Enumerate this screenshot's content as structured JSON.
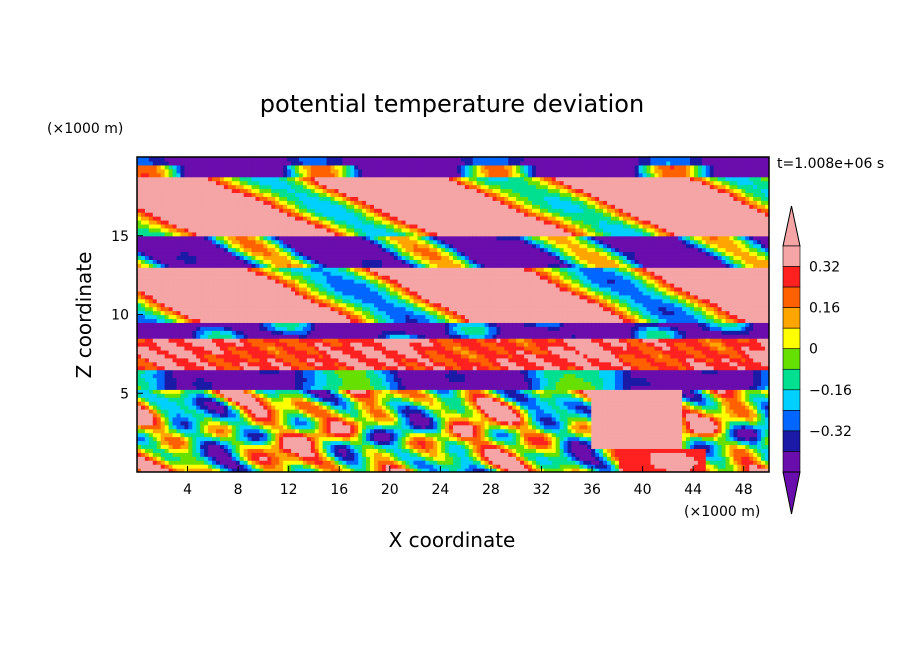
{
  "chart_data": {
    "type": "heatmap",
    "title": "potential temperature deviation",
    "xlabel": "X coordinate",
    "ylabel": "Z coordinate",
    "x_unit": "(×1000 m)",
    "y_unit": "(×1000 m)",
    "time_label": "t=1.008e+06 s",
    "xlim": [
      0,
      50
    ],
    "ylim": [
      0,
      20
    ],
    "x_ticks": [
      4,
      8,
      12,
      16,
      20,
      24,
      28,
      32,
      36,
      40,
      44,
      48
    ],
    "x_tick_labels": [
      "4",
      "8",
      "12",
      "16",
      "20",
      "24",
      "28",
      "32",
      "36",
      "40",
      "44",
      "48"
    ],
    "y_ticks": [
      5,
      10,
      15
    ],
    "y_tick_labels": [
      "5",
      "10",
      "15"
    ],
    "colorbar": {
      "levels": [
        -0.4,
        -0.32,
        -0.24,
        -0.16,
        -0.08,
        0,
        0.08,
        0.16,
        0.24,
        0.32,
        0.4
      ],
      "labels": [
        "0.32",
        "0.16",
        "0",
        "−0.16",
        "−0.32"
      ],
      "colors": [
        "#6a0dad",
        "#1a1aa6",
        "#0066ff",
        "#00d0ff",
        "#00e090",
        "#66e000",
        "#ffff00",
        "#ffa500",
        "#ff6000",
        "#ff2020",
        "#f5a5a5",
        "#f5a5a5"
      ]
    },
    "bands": [
      {
        "z": [
          18.8,
          20.0
        ],
        "description_value": -0.4
      },
      {
        "z": [
          15.0,
          18.8
        ],
        "description_value": 0.4
      },
      {
        "z": [
          13.0,
          15.0
        ],
        "description_value": -0.4
      },
      {
        "z": [
          10.0,
          13.0
        ],
        "description_value": 0.4
      },
      {
        "z": [
          8.5,
          10.0
        ],
        "description_value": -0.4
      },
      {
        "z": [
          6.5,
          8.5
        ],
        "description_value": 0.3
      },
      {
        "z": [
          5.5,
          6.5
        ],
        "description_value": -0.4
      },
      {
        "z": [
          0.0,
          5.5
        ],
        "description_value": 0.0
      }
    ]
  }
}
